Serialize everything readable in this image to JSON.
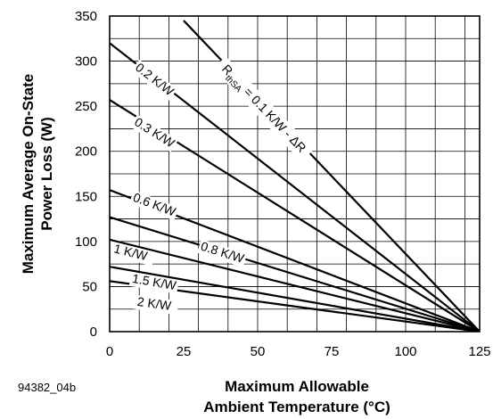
{
  "figure_id": "94382_04b",
  "chart_data": {
    "type": "line",
    "xlabel": [
      "Maximum Allowable",
      "Ambient Temperature (°C)"
    ],
    "ylabel": [
      "Maximum Average On-State",
      "Power Loss (W)"
    ],
    "xlim": [
      0,
      125
    ],
    "ylim": [
      0,
      350
    ],
    "x_ticks": [
      0,
      25,
      50,
      75,
      100,
      125
    ],
    "y_ticks": [
      0,
      50,
      100,
      150,
      200,
      250,
      300,
      350
    ],
    "grid": true,
    "label_base": "R",
    "label_sub": "thSA",
    "label_rest": " = 0.1 K/W - ΔR",
    "series": [
      {
        "name": "0.1 K/W",
        "x": [
          25,
          125
        ],
        "y": [
          345,
          0
        ]
      },
      {
        "name": "0.2 K/W",
        "x": [
          0,
          125
        ],
        "y": [
          320,
          0
        ]
      },
      {
        "name": "0.3 K/W",
        "x": [
          0,
          125
        ],
        "y": [
          257,
          0
        ]
      },
      {
        "name": "0.6 K/W",
        "x": [
          0,
          125
        ],
        "y": [
          157,
          0
        ]
      },
      {
        "name": "0.8 K/W",
        "x": [
          0,
          125
        ],
        "y": [
          127,
          0
        ]
      },
      {
        "name": "1 K/W",
        "x": [
          0,
          125
        ],
        "y": [
          102,
          0
        ]
      },
      {
        "name": "1.5 K/W",
        "x": [
          0,
          125
        ],
        "y": [
          72,
          0
        ]
      },
      {
        "name": "2 K/W",
        "x": [
          0,
          125
        ],
        "y": [
          56,
          0
        ]
      }
    ],
    "labels": [
      {
        "text": "0.2 K/W",
        "x": 15,
        "y": 279
      },
      {
        "text": "0.3 K/W",
        "x": 15,
        "y": 220
      },
      {
        "text": "0.6 K/W",
        "x": 15,
        "y": 140
      },
      {
        "text": "0.8 K/W",
        "x": 38,
        "y": 87
      },
      {
        "text": "1 K/W",
        "x": 7,
        "y": 87
      },
      {
        "text": "1.5 K/W",
        "x": 15,
        "y": 54
      },
      {
        "text": "2 K/W",
        "x": 15,
        "y": 30
      }
    ]
  }
}
